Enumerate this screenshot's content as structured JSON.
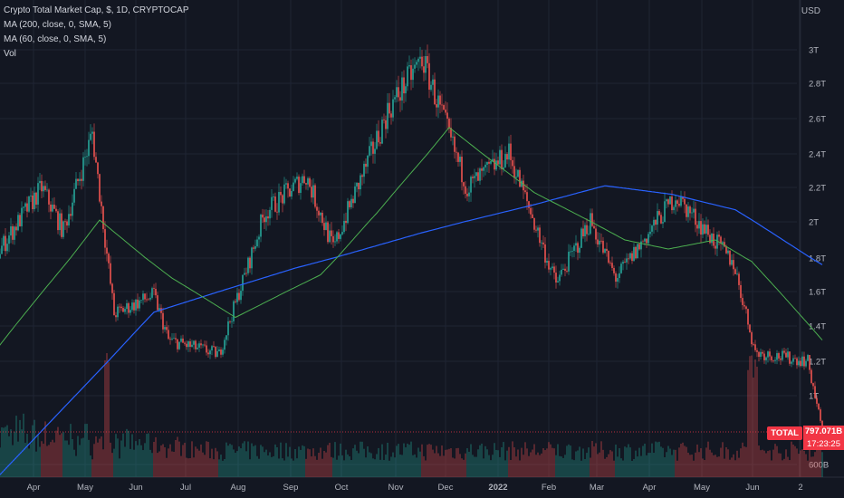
{
  "header": {
    "symbol_title": "Crypto Total Market Cap, $, 1D, CRYPTOCAP",
    "indicators": [
      "MA (200, close, 0, SMA, 5)",
      "MA (60, close, 0, SMA, 5)",
      "Vol"
    ]
  },
  "price_axis": {
    "currency": "USD",
    "labels": [
      "3T",
      "2.8T",
      "2.6T",
      "2.4T",
      "2.2T",
      "2T",
      "1.8T",
      "1.6T",
      "1.4T",
      "1.2T",
      "1T",
      "600B"
    ]
  },
  "last_price": {
    "symbol_tag": "TOTAL",
    "value": "797.071B",
    "countdown": "17:23:25"
  },
  "time_axis": {
    "labels": [
      "Apr",
      "May",
      "Jun",
      "Jul",
      "Aug",
      "Sep",
      "Oct",
      "Nov",
      "Dec",
      "2022",
      "Feb",
      "Mar",
      "Apr",
      "May",
      "Jun",
      "2"
    ]
  },
  "colors": {
    "background": "#131722",
    "up": "#26a69a",
    "down": "#ef5350",
    "ma200": "#2962ff",
    "ma60": "#4caf50",
    "grid": "#1f2433",
    "last_price": "#f23645"
  },
  "chart_data": {
    "type": "candlestick",
    "title": "Crypto Total Market Cap, $, 1D, CRYPTOCAP",
    "unit": "USD",
    "y_axis_ticks": [
      600000000000,
      1000000000000,
      1200000000000,
      1400000000000,
      1600000000000,
      1800000000000,
      2000000000000,
      2200000000000,
      2400000000000,
      2600000000000,
      2800000000000,
      3000000000000
    ],
    "x_axis_ticks": [
      "Apr",
      "May",
      "Jun",
      "Jul",
      "Aug",
      "Sep",
      "Oct",
      "Nov",
      "Dec",
      "2022",
      "Feb",
      "Mar",
      "Apr",
      "May",
      "Jun",
      "2"
    ],
    "price_trend_anchors": {
      "dates": [
        "2021-03-20",
        "2021-04-13",
        "2021-04-25",
        "2021-05-11",
        "2021-05-23",
        "2021-06-14",
        "2021-06-22",
        "2021-07-20",
        "2021-08-14",
        "2021-09-06",
        "2021-09-21",
        "2021-10-21",
        "2021-11-09",
        "2021-12-04",
        "2021-12-27",
        "2022-01-22",
        "2022-02-10",
        "2022-02-24",
        "2022-03-29",
        "2022-04-30",
        "2022-05-12",
        "2022-06-10",
        "2022-06-18"
      ],
      "close": [
        1830000000000,
        2200000000000,
        1950000000000,
        2520000000000,
        1470000000000,
        1580000000000,
        1320000000000,
        1240000000000,
        2050000000000,
        2270000000000,
        1850000000000,
        2640000000000,
        2950000000000,
        2200000000000,
        2400000000000,
        1650000000000,
        2010000000000,
        1680000000000,
        2150000000000,
        1770000000000,
        1250000000000,
        1200000000000,
        797071000000
      ]
    },
    "ma60_anchors": {
      "dates": [
        "2021-03-20",
        "2021-05-15",
        "2021-06-24",
        "2021-07-29",
        "2021-09-14",
        "2021-10-15",
        "2021-11-24",
        "2022-01-10",
        "2022-03-01",
        "2022-03-25",
        "2022-04-20",
        "2022-05-10",
        "2022-06-18"
      ],
      "values": [
        1280000000000,
        2010000000000,
        1680000000000,
        1450000000000,
        1700000000000,
        2050000000000,
        2550000000000,
        2170000000000,
        1900000000000,
        1850000000000,
        1900000000000,
        1780000000000,
        1320000000000
      ]
    },
    "ma200_anchors": {
      "dates": [
        "2021-03-20",
        "2021-06-14",
        "2021-08-31",
        "2021-11-09",
        "2022-01-10",
        "2022-02-18",
        "2022-03-27",
        "2022-05-01",
        "2022-06-18"
      ],
      "values": [
        530000000000,
        1480000000000,
        1740000000000,
        1940000000000,
        2100000000000,
        2210000000000,
        2160000000000,
        2070000000000,
        1760000000000
      ]
    },
    "volume_spikes": [
      "2021-05-19",
      "2022-05-09",
      "2022-05-12"
    ]
  }
}
